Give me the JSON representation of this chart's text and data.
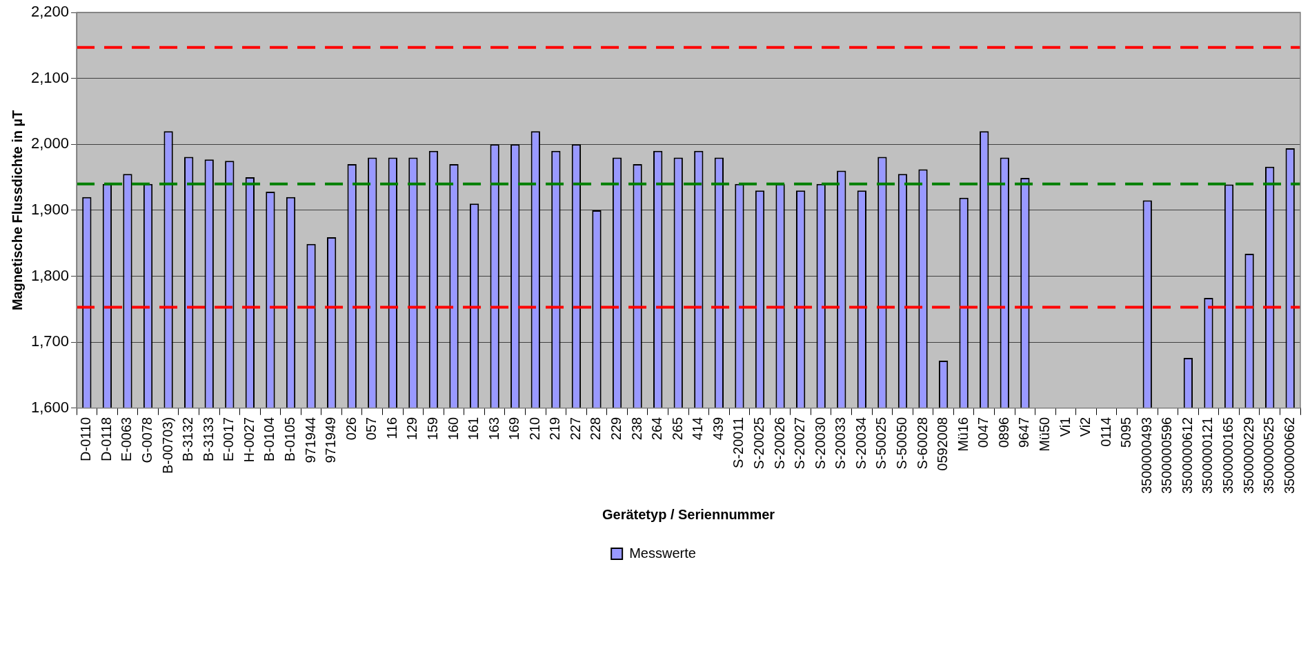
{
  "chart_data": {
    "type": "bar",
    "xlabel": "Gerätetyp / Seriennummer",
    "ylabel": "Magnetische Flussdichte in µT",
    "categories": [
      "D-0110",
      "D-0118",
      "E-0063",
      "G-0078",
      "B-00703)",
      "B-3132",
      "B-3133",
      "E-0017",
      "H-0027",
      "B-0104",
      "B-0105",
      "971944",
      "971949",
      "026",
      "057",
      "116",
      "129",
      "159",
      "160",
      "161",
      "163",
      "169",
      "210",
      "219",
      "227",
      "228",
      "229",
      "238",
      "264",
      "265",
      "414",
      "439",
      "S-20011",
      "S-20025",
      "S-20026",
      "S-20027",
      "S-20030",
      "S-20033",
      "S-20034",
      "S-50025",
      "S-50050",
      "S-60028",
      "0592008",
      "Mü16",
      "0047",
      "0896",
      "9647",
      "Mü50",
      "Vi1",
      "Vi2",
      "0114",
      "5095",
      "3500000493",
      "3500000596",
      "3500000612",
      "3500000121",
      "3500000165",
      "3500000229",
      "3500000525",
      "3500000662"
    ],
    "series": [
      {
        "name": "Messwerte",
        "color": "#9999ff",
        "values": [
          1920,
          1940,
          1955,
          1940,
          2020,
          1981,
          1977,
          1975,
          1950,
          1928,
          1920,
          1849,
          1859,
          1970,
          1980,
          1980,
          1980,
          1990,
          1970,
          1910,
          2000,
          2000,
          2020,
          1990,
          2000,
          1900,
          1980,
          1970,
          1990,
          1980,
          1990,
          1980,
          1940,
          1930,
          1940,
          1930,
          1940,
          1960,
          1930,
          1981,
          1955,
          1962,
          1672,
          1919,
          2020,
          1980,
          1949,
          null,
          null,
          null,
          null,
          null,
          1915,
          null,
          1676,
          1767,
          1939,
          1834,
          1966,
          1994
        ]
      }
    ],
    "ylim": [
      1600,
      2200
    ],
    "yticks": [
      {
        "value": 1600,
        "label": "1,600"
      },
      {
        "value": 1700,
        "label": "1,700"
      },
      {
        "value": 1800,
        "label": "1,800"
      },
      {
        "value": 1900,
        "label": "1,900"
      },
      {
        "value": 2000,
        "label": "2,000"
      },
      {
        "value": 2100,
        "label": "2,100"
      },
      {
        "value": 2200,
        "label": "2,200"
      }
    ],
    "ref_lines": [
      {
        "axis": "y",
        "value": 2147,
        "color": "#ff0000",
        "line_style": "dashed"
      },
      {
        "axis": "y",
        "value": 1940,
        "color": "#008000",
        "line_style": "dashed"
      },
      {
        "axis": "y",
        "value": 1753,
        "color": "#ff0000",
        "line_style": "dashed"
      }
    ],
    "grid": "y",
    "legend": "bottom"
  }
}
